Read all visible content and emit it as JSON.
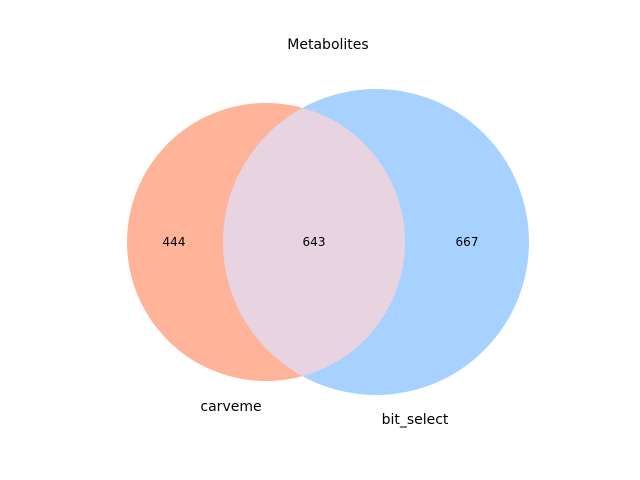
{
  "title": "Metabolites",
  "sets": [
    {
      "name": "carveme",
      "color": "#ffb398"
    },
    {
      "name": "bit_select",
      "color": "#a7d1ff"
    }
  ],
  "intersection_color": "#e8d4e0",
  "counts": {
    "only_left": "444",
    "both": "643",
    "only_right": "667"
  }
}
